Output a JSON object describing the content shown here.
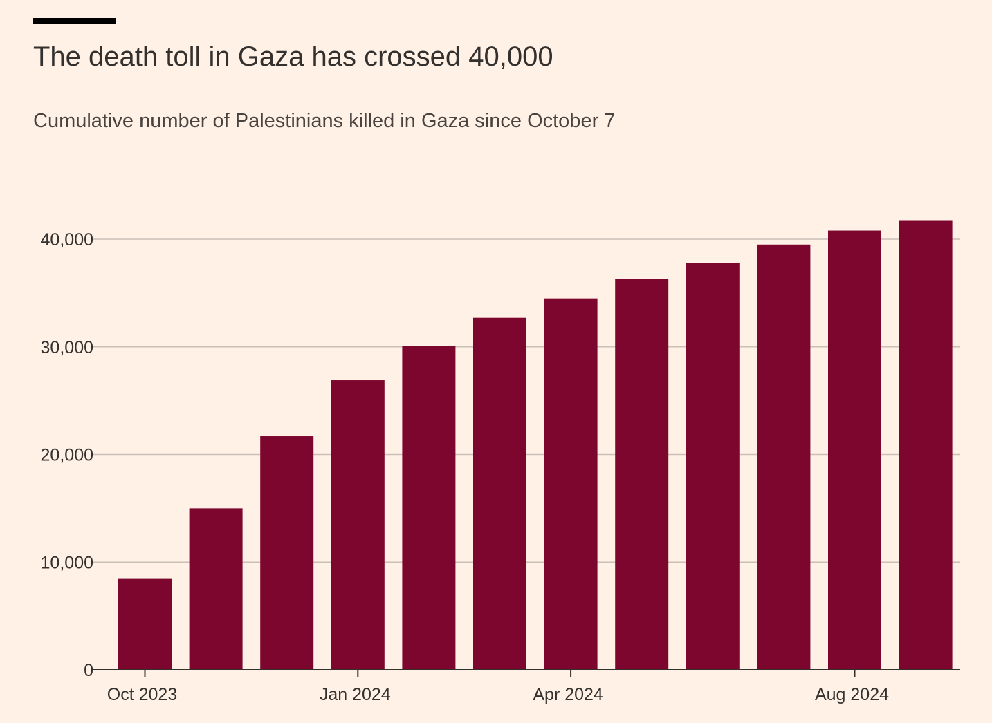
{
  "header": {
    "title": "The death toll in Gaza has crossed 40,000",
    "subtitle": "Cumulative number of Palestinians killed in Gaza since October 7"
  },
  "colors": {
    "background": "#fff1e5",
    "bar": "#7d062e",
    "grid": "#c9c0b8",
    "text": "#33302e",
    "accent_rule": "#000000"
  },
  "chart_data": {
    "type": "bar",
    "title": "The death toll in Gaza has crossed 40,000",
    "subtitle": "Cumulative number of Palestinians killed in Gaza since October 7",
    "xlabel": "",
    "ylabel": "",
    "ylim": [
      0,
      40000
    ],
    "grid": true,
    "legend": "none",
    "yticks": [
      {
        "value": 0,
        "label": "0"
      },
      {
        "value": 10000,
        "label": "10,000"
      },
      {
        "value": 20000,
        "label": "20,000"
      },
      {
        "value": 30000,
        "label": "30,000"
      },
      {
        "value": 40000,
        "label": "40,000"
      }
    ],
    "categories": [
      "2023-10",
      "2023-11",
      "2023-12",
      "2024-01",
      "2024-02",
      "2024-03",
      "2024-04",
      "2024-05",
      "2024-06",
      "2024-07",
      "2024-08",
      "2024-09"
    ],
    "values": [
      8500,
      15000,
      21700,
      26900,
      30100,
      32700,
      34500,
      36300,
      37800,
      39500,
      40800,
      41700
    ],
    "xticks": [
      {
        "category_index": 0,
        "label": "Oct 2023"
      },
      {
        "category_index": 3,
        "label": "Jan 2024"
      },
      {
        "category_index": 6,
        "label": "Apr 2024"
      },
      {
        "category_index": 10,
        "label": "Aug 2024"
      }
    ]
  }
}
